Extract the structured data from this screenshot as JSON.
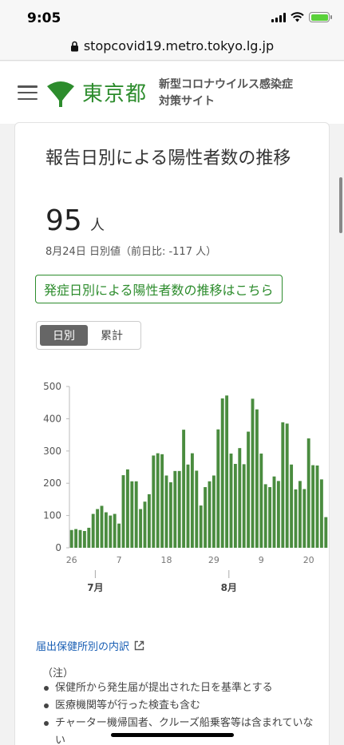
{
  "status": {
    "time": "9:05"
  },
  "browser": {
    "url": "stopcovid19.metro.tokyo.lg.jp"
  },
  "header": {
    "logo_text": "東京都",
    "site_title_line1": "新型コロナウイルス感染症",
    "site_title_line2": "対策サイト"
  },
  "card": {
    "title": "報告日別による陽性者数の推移",
    "value": "95",
    "unit": "人",
    "sub": "8月24日 日別値（前日比: -117 人）",
    "onset_link": "発症日別による陽性者数の推移はこちら",
    "toggle": {
      "daily": "日別",
      "cumulative": "累計"
    },
    "source_link": "届出保健所別の内訳",
    "notes_title": "（注）",
    "notes": [
      "保健所から発生届が提出された日を基準とする",
      "医療機関等が行った検査も含む",
      "チャーター機帰国者、クルーズ船乗客等は含まれていない"
    ]
  },
  "colors": {
    "accent": "#2d8c2d",
    "bar": "#4a8c3f",
    "link": "#1a5fb4"
  },
  "chart_data": {
    "type": "bar",
    "ylim": [
      0,
      500
    ],
    "yticks": [
      0,
      100,
      200,
      300,
      400,
      500
    ],
    "xtick_labels": [
      "26",
      "7",
      "18",
      "29",
      "9",
      "20"
    ],
    "month_labels": [
      "7月",
      "8月"
    ],
    "values": [
      55,
      58,
      55,
      52,
      62,
      105,
      120,
      130,
      110,
      100,
      105,
      75,
      225,
      243,
      206,
      206,
      120,
      143,
      166,
      286,
      293,
      290,
      224,
      203,
      238,
      238,
      366,
      258,
      293,
      239,
      131,
      188,
      206,
      224,
      367,
      463,
      472,
      292,
      260,
      309,
      259,
      360,
      462,
      429,
      292,
      197,
      188,
      221,
      207,
      389,
      385,
      258,
      181,
      207,
      182,
      339,
      256,
      255,
      212,
      95
    ]
  }
}
